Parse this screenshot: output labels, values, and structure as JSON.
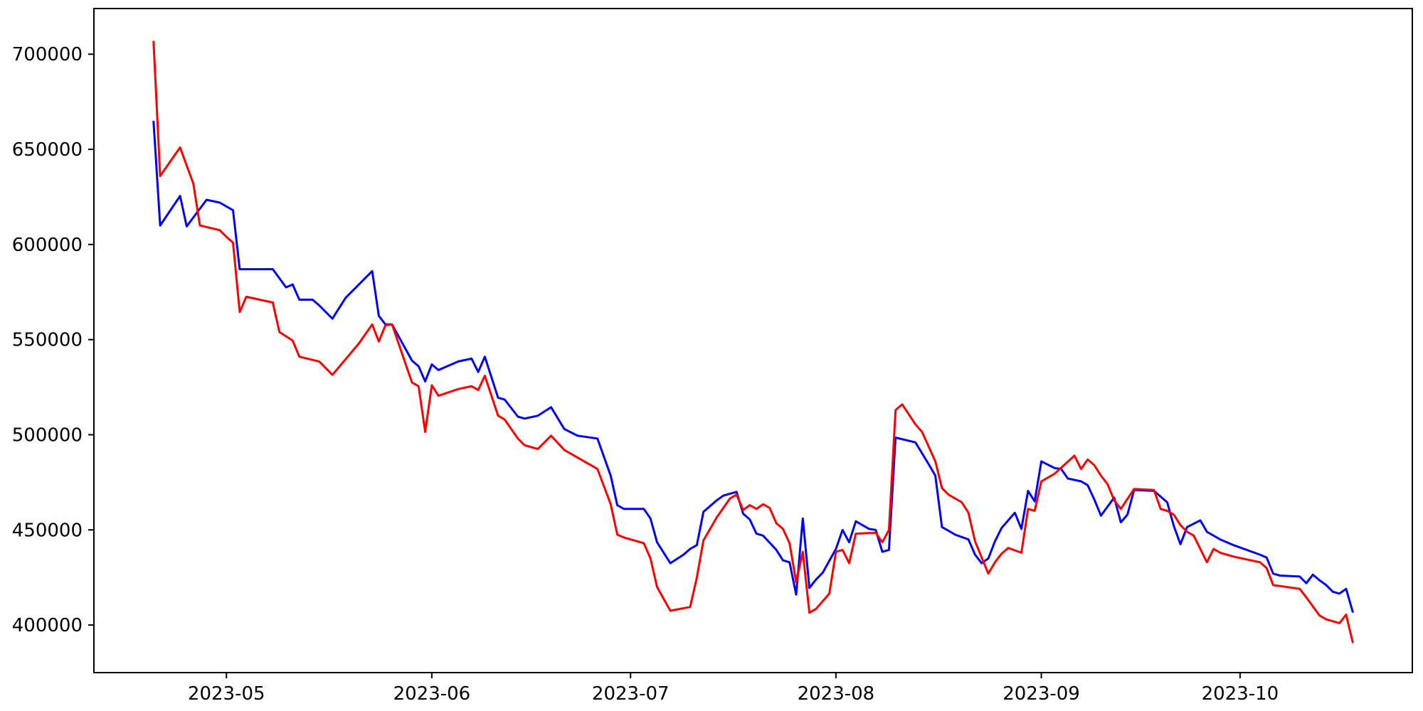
{
  "figure": {
    "background_color": "#ffffff",
    "frame_color": "#000000",
    "tick_label_color": "#000000",
    "title": ""
  },
  "chart_data": {
    "type": "line",
    "title": "",
    "xlabel": "",
    "ylabel": "",
    "grid": false,
    "legend": "none",
    "x_range": [
      "2023-04-11",
      "2023-10-27"
    ],
    "y_range": [
      375000,
      724000
    ],
    "x_ticks": [
      {
        "date": "2023-05-01",
        "label": "2023-05"
      },
      {
        "date": "2023-06-01",
        "label": "2023-06"
      },
      {
        "date": "2023-07-01",
        "label": "2023-07"
      },
      {
        "date": "2023-08-01",
        "label": "2023-08"
      },
      {
        "date": "2023-09-01",
        "label": "2023-09"
      },
      {
        "date": "2023-10-01",
        "label": "2023-10"
      }
    ],
    "y_ticks": [
      {
        "value": 400000,
        "label": "400000"
      },
      {
        "value": 450000,
        "label": "450000"
      },
      {
        "value": 500000,
        "label": "500000"
      },
      {
        "value": 550000,
        "label": "550000"
      },
      {
        "value": 600000,
        "label": "600000"
      },
      {
        "value": 650000,
        "label": "650000"
      },
      {
        "value": 700000,
        "label": "700000"
      }
    ],
    "series": [
      {
        "name": "blue",
        "color": "#0000ff",
        "line_width": 3,
        "points": [
          [
            "2023-04-20",
            664500
          ],
          [
            "2023-04-21",
            610000
          ],
          [
            "2023-04-24",
            625500
          ],
          [
            "2023-04-25",
            609500
          ],
          [
            "2023-04-28",
            623500
          ],
          [
            "2023-04-30",
            622000
          ],
          [
            "2023-05-02",
            618000
          ],
          [
            "2023-05-03",
            587000
          ],
          [
            "2023-05-08",
            587000
          ],
          [
            "2023-05-10",
            577500
          ],
          [
            "2023-05-11",
            579000
          ],
          [
            "2023-05-12",
            571000
          ],
          [
            "2023-05-14",
            571000
          ],
          [
            "2023-05-15",
            568000
          ],
          [
            "2023-05-17",
            561000
          ],
          [
            "2023-05-19",
            572000
          ],
          [
            "2023-05-23",
            586000
          ],
          [
            "2023-05-24",
            562500
          ],
          [
            "2023-05-25",
            558000
          ],
          [
            "2023-05-26",
            558000
          ],
          [
            "2023-05-29",
            539000
          ],
          [
            "2023-05-30",
            536000
          ],
          [
            "2023-05-31",
            528000
          ],
          [
            "2023-06-01",
            537000
          ],
          [
            "2023-06-02",
            534000
          ],
          [
            "2023-06-05",
            538500
          ],
          [
            "2023-06-07",
            540000
          ],
          [
            "2023-06-08",
            533000
          ],
          [
            "2023-06-09",
            541000
          ],
          [
            "2023-06-11",
            519500
          ],
          [
            "2023-06-12",
            518500
          ],
          [
            "2023-06-14",
            509500
          ],
          [
            "2023-06-15",
            508500
          ],
          [
            "2023-06-17",
            510000
          ],
          [
            "2023-06-19",
            514500
          ],
          [
            "2023-06-21",
            503000
          ],
          [
            "2023-06-23",
            499500
          ],
          [
            "2023-06-26",
            498000
          ],
          [
            "2023-06-28",
            478500
          ],
          [
            "2023-06-29",
            463000
          ],
          [
            "2023-06-30",
            461000
          ],
          [
            "2023-07-03",
            461000
          ],
          [
            "2023-07-04",
            456000
          ],
          [
            "2023-07-05",
            443500
          ],
          [
            "2023-07-07",
            432500
          ],
          [
            "2023-07-09",
            437000
          ],
          [
            "2023-07-10",
            440000
          ],
          [
            "2023-07-11",
            442000
          ],
          [
            "2023-07-12",
            459500
          ],
          [
            "2023-07-14",
            465500
          ],
          [
            "2023-07-15",
            468000
          ],
          [
            "2023-07-17",
            470000
          ],
          [
            "2023-07-18",
            458500
          ],
          [
            "2023-07-19",
            455500
          ],
          [
            "2023-07-20",
            448000
          ],
          [
            "2023-07-21",
            447000
          ],
          [
            "2023-07-23",
            439500
          ],
          [
            "2023-07-24",
            434000
          ],
          [
            "2023-07-25",
            433000
          ],
          [
            "2023-07-26",
            416000
          ],
          [
            "2023-07-27",
            456000
          ],
          [
            "2023-07-28",
            419500
          ],
          [
            "2023-07-29",
            424000
          ],
          [
            "2023-07-30",
            427500
          ],
          [
            "2023-08-01",
            440000
          ],
          [
            "2023-08-02",
            450000
          ],
          [
            "2023-08-03",
            443500
          ],
          [
            "2023-08-04",
            454500
          ],
          [
            "2023-08-05",
            452500
          ],
          [
            "2023-08-06",
            450500
          ],
          [
            "2023-08-07",
            450000
          ],
          [
            "2023-08-08",
            438500
          ],
          [
            "2023-08-09",
            439500
          ],
          [
            "2023-08-10",
            498500
          ],
          [
            "2023-08-13",
            496000
          ],
          [
            "2023-08-15",
            484500
          ],
          [
            "2023-08-16",
            478500
          ],
          [
            "2023-08-17",
            451500
          ],
          [
            "2023-08-18",
            449500
          ],
          [
            "2023-08-19",
            447500
          ],
          [
            "2023-08-21",
            445000
          ],
          [
            "2023-08-22",
            437000
          ],
          [
            "2023-08-23",
            432500
          ],
          [
            "2023-08-24",
            435000
          ],
          [
            "2023-08-25",
            444000
          ],
          [
            "2023-08-26",
            451000
          ],
          [
            "2023-08-27",
            455000
          ],
          [
            "2023-08-28",
            459000
          ],
          [
            "2023-08-29",
            450500
          ],
          [
            "2023-08-30",
            470500
          ],
          [
            "2023-08-31",
            465000
          ],
          [
            "2023-09-01",
            486000
          ],
          [
            "2023-09-03",
            482500
          ],
          [
            "2023-09-04",
            482000
          ],
          [
            "2023-09-05",
            477000
          ],
          [
            "2023-09-07",
            475500
          ],
          [
            "2023-09-08",
            473500
          ],
          [
            "2023-09-09",
            466000
          ],
          [
            "2023-09-10",
            457500
          ],
          [
            "2023-09-12",
            467000
          ],
          [
            "2023-09-13",
            454000
          ],
          [
            "2023-09-14",
            458000
          ],
          [
            "2023-09-15",
            471000
          ],
          [
            "2023-09-18",
            470500
          ],
          [
            "2023-09-20",
            464500
          ],
          [
            "2023-09-21",
            452000
          ],
          [
            "2023-09-22",
            442500
          ],
          [
            "2023-09-23",
            451500
          ],
          [
            "2023-09-25",
            455000
          ],
          [
            "2023-09-26",
            449000
          ],
          [
            "2023-09-28",
            445000
          ],
          [
            "2023-09-30",
            442000
          ],
          [
            "2023-10-02",
            439500
          ],
          [
            "2023-10-04",
            437000
          ],
          [
            "2023-10-05",
            435500
          ],
          [
            "2023-10-06",
            427000
          ],
          [
            "2023-10-07",
            426000
          ],
          [
            "2023-10-10",
            425500
          ],
          [
            "2023-10-11",
            422000
          ],
          [
            "2023-10-12",
            426500
          ],
          [
            "2023-10-13",
            423500
          ],
          [
            "2023-10-14",
            421000
          ],
          [
            "2023-10-15",
            417500
          ],
          [
            "2023-10-16",
            416500
          ],
          [
            "2023-10-17",
            419000
          ],
          [
            "2023-10-18",
            407000
          ]
        ]
      },
      {
        "name": "red",
        "color": "#ff0000",
        "line_width": 3,
        "points": [
          [
            "2023-04-20",
            706500
          ],
          [
            "2023-04-21",
            636000
          ],
          [
            "2023-04-24",
            651000
          ],
          [
            "2023-04-26",
            632000
          ],
          [
            "2023-04-27",
            610000
          ],
          [
            "2023-04-30",
            607500
          ],
          [
            "2023-05-01",
            604000
          ],
          [
            "2023-05-02",
            601000
          ],
          [
            "2023-05-03",
            564500
          ],
          [
            "2023-05-04",
            572500
          ],
          [
            "2023-05-08",
            569500
          ],
          [
            "2023-05-09",
            554000
          ],
          [
            "2023-05-11",
            549500
          ],
          [
            "2023-05-12",
            541000
          ],
          [
            "2023-05-15",
            538500
          ],
          [
            "2023-05-17",
            531500
          ],
          [
            "2023-05-21",
            548000
          ],
          [
            "2023-05-23",
            558000
          ],
          [
            "2023-05-24",
            549000
          ],
          [
            "2023-05-25",
            557500
          ],
          [
            "2023-05-26",
            558000
          ],
          [
            "2023-05-29",
            527500
          ],
          [
            "2023-05-30",
            525500
          ],
          [
            "2023-05-31",
            501500
          ],
          [
            "2023-06-01",
            526000
          ],
          [
            "2023-06-02",
            520500
          ],
          [
            "2023-06-05",
            524000
          ],
          [
            "2023-06-07",
            525500
          ],
          [
            "2023-06-08",
            523500
          ],
          [
            "2023-06-09",
            531000
          ],
          [
            "2023-06-11",
            510000
          ],
          [
            "2023-06-12",
            508000
          ],
          [
            "2023-06-14",
            498000
          ],
          [
            "2023-06-15",
            494500
          ],
          [
            "2023-06-17",
            492500
          ],
          [
            "2023-06-19",
            499500
          ],
          [
            "2023-06-21",
            492000
          ],
          [
            "2023-06-22",
            490000
          ],
          [
            "2023-06-24",
            486000
          ],
          [
            "2023-06-26",
            482000
          ],
          [
            "2023-06-28",
            463500
          ],
          [
            "2023-06-29",
            447500
          ],
          [
            "2023-06-30",
            446000
          ],
          [
            "2023-07-03",
            443000
          ],
          [
            "2023-07-04",
            435000
          ],
          [
            "2023-07-05",
            420000
          ],
          [
            "2023-07-07",
            407500
          ],
          [
            "2023-07-10",
            409500
          ],
          [
            "2023-07-11",
            425000
          ],
          [
            "2023-07-12",
            444500
          ],
          [
            "2023-07-14",
            456500
          ],
          [
            "2023-07-16",
            466500
          ],
          [
            "2023-07-17",
            468500
          ],
          [
            "2023-07-18",
            460500
          ],
          [
            "2023-07-19",
            463000
          ],
          [
            "2023-07-20",
            461000
          ],
          [
            "2023-07-21",
            463500
          ],
          [
            "2023-07-22",
            461500
          ],
          [
            "2023-07-23",
            453500
          ],
          [
            "2023-07-24",
            450500
          ],
          [
            "2023-07-25",
            443000
          ],
          [
            "2023-07-26",
            422500
          ],
          [
            "2023-07-27",
            438500
          ],
          [
            "2023-07-28",
            406500
          ],
          [
            "2023-07-29",
            408500
          ],
          [
            "2023-07-31",
            416500
          ],
          [
            "2023-08-01",
            438500
          ],
          [
            "2023-08-02",
            439500
          ],
          [
            "2023-08-03",
            432500
          ],
          [
            "2023-08-04",
            448000
          ],
          [
            "2023-08-07",
            448500
          ],
          [
            "2023-08-08",
            443500
          ],
          [
            "2023-08-09",
            450000
          ],
          [
            "2023-08-10",
            513000
          ],
          [
            "2023-08-11",
            516000
          ],
          [
            "2023-08-13",
            505500
          ],
          [
            "2023-08-14",
            501500
          ],
          [
            "2023-08-16",
            486000
          ],
          [
            "2023-08-17",
            472000
          ],
          [
            "2023-08-18",
            468500
          ],
          [
            "2023-08-20",
            464500
          ],
          [
            "2023-08-21",
            459000
          ],
          [
            "2023-08-22",
            444000
          ],
          [
            "2023-08-23",
            435500
          ],
          [
            "2023-08-24",
            427000
          ],
          [
            "2023-08-25",
            433000
          ],
          [
            "2023-08-26",
            437500
          ],
          [
            "2023-08-27",
            440500
          ],
          [
            "2023-08-29",
            438000
          ],
          [
            "2023-08-30",
            461000
          ],
          [
            "2023-08-31",
            460000
          ],
          [
            "2023-09-01",
            475500
          ],
          [
            "2023-09-03",
            479500
          ],
          [
            "2023-09-06",
            489000
          ],
          [
            "2023-09-07",
            482000
          ],
          [
            "2023-09-08",
            487000
          ],
          [
            "2023-09-09",
            484000
          ],
          [
            "2023-09-10",
            478500
          ],
          [
            "2023-09-11",
            474000
          ],
          [
            "2023-09-12",
            465500
          ],
          [
            "2023-09-13",
            461000
          ],
          [
            "2023-09-15",
            471500
          ],
          [
            "2023-09-18",
            471000
          ],
          [
            "2023-09-19",
            461000
          ],
          [
            "2023-09-20",
            460000
          ],
          [
            "2023-09-21",
            458000
          ],
          [
            "2023-09-22",
            452500
          ],
          [
            "2023-09-23",
            449000
          ],
          [
            "2023-09-24",
            447000
          ],
          [
            "2023-09-26",
            433000
          ],
          [
            "2023-09-27",
            440000
          ],
          [
            "2023-09-28",
            438000
          ],
          [
            "2023-09-30",
            436000
          ],
          [
            "2023-10-02",
            434500
          ],
          [
            "2023-10-04",
            433000
          ],
          [
            "2023-10-05",
            430000
          ],
          [
            "2023-10-06",
            421000
          ],
          [
            "2023-10-07",
            420500
          ],
          [
            "2023-10-10",
            419000
          ],
          [
            "2023-10-11",
            414500
          ],
          [
            "2023-10-13",
            405000
          ],
          [
            "2023-10-14",
            403000
          ],
          [
            "2023-10-16",
            401000
          ],
          [
            "2023-10-17",
            405500
          ],
          [
            "2023-10-18",
            391000
          ]
        ]
      }
    ]
  }
}
